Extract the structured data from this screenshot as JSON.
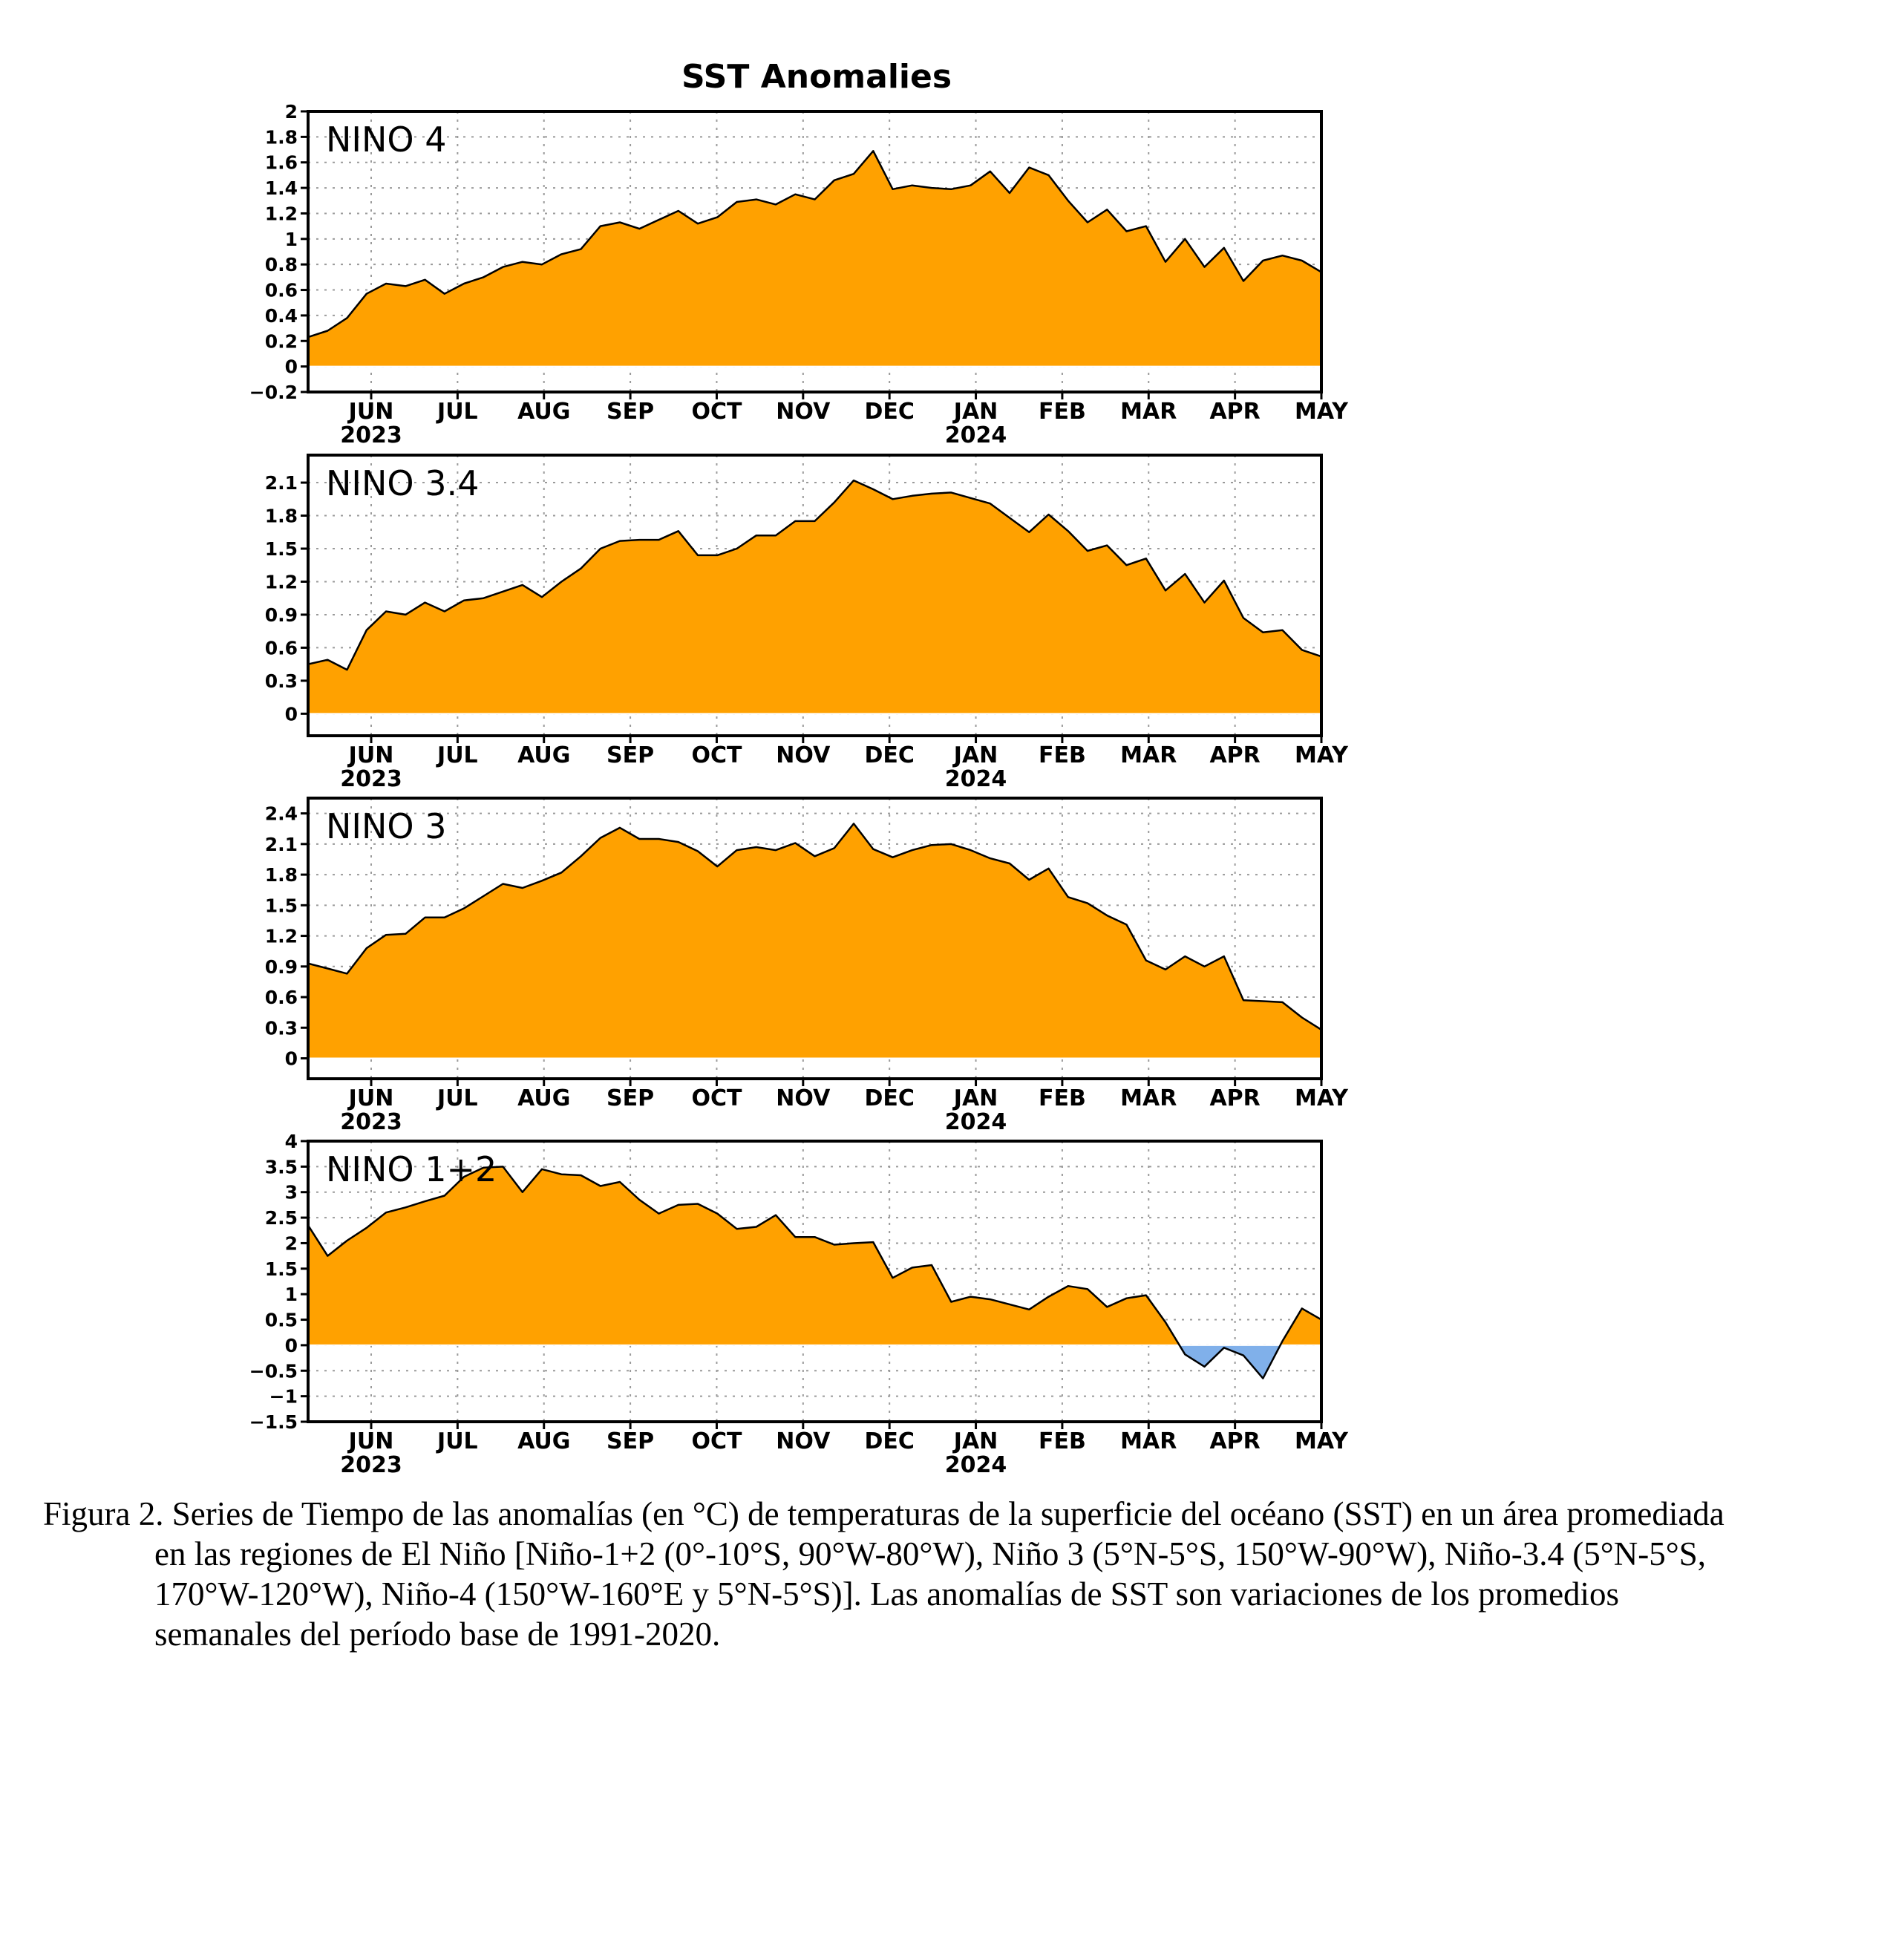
{
  "title": "SST Anomalies",
  "colors": {
    "positive": "#FFA100",
    "negative": "#80B0EA",
    "line": "#000000",
    "grid": "#9a9a9a"
  },
  "x_axis": {
    "months": [
      "JUN",
      "JUL",
      "AUG",
      "SEP",
      "OCT",
      "NOV",
      "DEC",
      "JAN",
      "FEB",
      "MAR",
      "APR",
      "MAY"
    ],
    "years": [
      {
        "label": "2023",
        "under": "JUN"
      },
      {
        "label": "2024",
        "under": "JAN"
      }
    ]
  },
  "chart_data": [
    {
      "type": "area",
      "name": "NINO 4",
      "ylim": [
        -0.2,
        2
      ],
      "yticks": [
        "2",
        "1.8",
        "1.6",
        "1.4",
        "1.2",
        "1",
        "0.8",
        "0.6",
        "0.4",
        "0.2",
        "0",
        "−0.2"
      ],
      "ytick_values": [
        2,
        1.8,
        1.6,
        1.4,
        1.2,
        1,
        0.8,
        0.6,
        0.4,
        0.2,
        0,
        -0.2
      ],
      "grid": true,
      "x_weeks": [
        0,
        1,
        2,
        3,
        4,
        5,
        6,
        7,
        8,
        9,
        10,
        11,
        12,
        13,
        14,
        15,
        16,
        17,
        18,
        19,
        20,
        21,
        22,
        23,
        24,
        25,
        26,
        27,
        28,
        29,
        30,
        31,
        32,
        33,
        34,
        35,
        36,
        37,
        38,
        39,
        40,
        41,
        42,
        43,
        44,
        45,
        46,
        47,
        48,
        49,
        50,
        51,
        52
      ],
      "values": [
        0.23,
        0.28,
        0.38,
        0.57,
        0.65,
        0.63,
        0.68,
        0.57,
        0.65,
        0.7,
        0.78,
        0.82,
        0.8,
        0.88,
        0.92,
        1.1,
        1.13,
        1.08,
        1.15,
        1.22,
        1.12,
        1.17,
        1.29,
        1.31,
        1.27,
        1.35,
        1.31,
        1.46,
        1.51,
        1.69,
        1.39,
        1.42,
        1.4,
        1.39,
        1.42,
        1.53,
        1.36,
        1.56,
        1.5,
        1.3,
        1.13,
        1.23,
        1.06,
        1.1,
        0.82,
        1.0,
        0.78,
        0.93,
        0.67,
        0.83,
        0.87,
        0.83,
        0.74
      ]
    },
    {
      "type": "area",
      "name": "NINO 3.4",
      "ylim": [
        -0.2,
        2.35
      ],
      "yticks": [
        "2.1",
        "1.8",
        "1.5",
        "1.2",
        "0.9",
        "0.6",
        "0.3",
        "0"
      ],
      "ytick_values": [
        2.1,
        1.8,
        1.5,
        1.2,
        0.9,
        0.6,
        0.3,
        0
      ],
      "grid": true,
      "x_weeks": [
        0,
        1,
        2,
        3,
        4,
        5,
        6,
        7,
        8,
        9,
        10,
        11,
        12,
        13,
        14,
        15,
        16,
        17,
        18,
        19,
        20,
        21,
        22,
        23,
        24,
        25,
        26,
        27,
        28,
        29,
        30,
        31,
        32,
        33,
        34,
        35,
        36,
        37,
        38,
        39,
        40,
        41,
        42,
        43,
        44,
        45,
        46,
        47,
        48,
        49,
        50,
        51,
        52
      ],
      "values": [
        0.45,
        0.49,
        0.4,
        0.76,
        0.93,
        0.9,
        1.01,
        0.93,
        1.03,
        1.05,
        1.11,
        1.17,
        1.06,
        1.2,
        1.32,
        1.5,
        1.57,
        1.58,
        1.58,
        1.66,
        1.44,
        1.44,
        1.5,
        1.62,
        1.62,
        1.75,
        1.75,
        1.92,
        2.12,
        2.04,
        1.95,
        1.98,
        2.0,
        2.01,
        1.96,
        1.91,
        1.78,
        1.65,
        1.81,
        1.66,
        1.48,
        1.53,
        1.35,
        1.41,
        1.12,
        1.27,
        1.01,
        1.21,
        0.87,
        0.74,
        0.76,
        0.58,
        0.52
      ]
    },
    {
      "type": "area",
      "name": "NINO 3",
      "ylim": [
        -0.2,
        2.55
      ],
      "yticks": [
        "2.4",
        "2.1",
        "1.8",
        "1.5",
        "1.2",
        "0.9",
        "0.6",
        "0.3",
        "0"
      ],
      "ytick_values": [
        2.4,
        2.1,
        1.8,
        1.5,
        1.2,
        0.9,
        0.6,
        0.3,
        0
      ],
      "grid": true,
      "x_weeks": [
        0,
        1,
        2,
        3,
        4,
        5,
        6,
        7,
        8,
        9,
        10,
        11,
        12,
        13,
        14,
        15,
        16,
        17,
        18,
        19,
        20,
        21,
        22,
        23,
        24,
        25,
        26,
        27,
        28,
        29,
        30,
        31,
        32,
        33,
        34,
        35,
        36,
        37,
        38,
        39,
        40,
        41,
        42,
        43,
        44,
        45,
        46,
        47,
        48,
        49,
        50,
        51,
        52
      ],
      "values": [
        0.93,
        0.88,
        0.83,
        1.08,
        1.21,
        1.22,
        1.38,
        1.38,
        1.47,
        1.59,
        1.71,
        1.67,
        1.74,
        1.82,
        1.98,
        2.16,
        2.26,
        2.15,
        2.15,
        2.12,
        2.03,
        1.88,
        2.04,
        2.07,
        2.04,
        2.11,
        1.98,
        2.06,
        2.3,
        2.05,
        1.97,
        2.04,
        2.09,
        2.1,
        2.04,
        1.96,
        1.91,
        1.75,
        1.86,
        1.58,
        1.52,
        1.4,
        1.31,
        0.96,
        0.87,
        1.0,
        0.9,
        1.0,
        0.57,
        0.56,
        0.55,
        0.4,
        0.28
      ]
    },
    {
      "type": "area",
      "name": "NINO 1+2",
      "ylim": [
        -1.5,
        4
      ],
      "yticks": [
        "4",
        "3.5",
        "3",
        "2.5",
        "2",
        "1.5",
        "1",
        "0.5",
        "0",
        "−0.5",
        "−1",
        "−1.5"
      ],
      "ytick_values": [
        4,
        3.5,
        3,
        2.5,
        2,
        1.5,
        1,
        0.5,
        0,
        -0.5,
        -1,
        -1.5
      ],
      "grid": true,
      "x_weeks": [
        0,
        1,
        2,
        3,
        4,
        5,
        6,
        7,
        8,
        9,
        10,
        11,
        12,
        13,
        14,
        15,
        16,
        17,
        18,
        19,
        20,
        21,
        22,
        23,
        24,
        25,
        26,
        27,
        28,
        29,
        30,
        31,
        32,
        33,
        34,
        35,
        36,
        37,
        38,
        39,
        40,
        41,
        42,
        43,
        44,
        45,
        46,
        47,
        48,
        49,
        50,
        51,
        52
      ],
      "values": [
        2.35,
        1.75,
        2.05,
        2.3,
        2.6,
        2.7,
        2.82,
        2.93,
        3.3,
        3.48,
        3.5,
        3.0,
        3.45,
        3.35,
        3.33,
        3.12,
        3.2,
        2.85,
        2.58,
        2.75,
        2.77,
        2.58,
        2.28,
        2.32,
        2.55,
        2.12,
        2.12,
        1.97,
        2.0,
        2.02,
        1.32,
        1.52,
        1.57,
        0.85,
        0.95,
        0.9,
        0.8,
        0.7,
        0.95,
        1.16,
        1.1,
        0.75,
        0.92,
        0.98,
        0.45,
        -0.18,
        -0.42,
        -0.05,
        -0.2,
        -0.65,
        0.08,
        0.72,
        0.5
      ]
    }
  ],
  "caption": {
    "line1": "Figura 2. Series de Tiempo de las anomalías (en °C) de temperaturas de la superficie del océano (SST) en un área promediada en las regiones de El Niño [Niño-1+2 (0°-10°S, 90°W-80°W), Niño 3 (5°N-5°S, 150°W-90°W), Niño-3.4 (5°N-5°S, 170°W-120°W), Niño-4 (150°W-160°E y 5°N-5°S)]. Las anomalías de SST son variaciones de los promedios semanales del período base de 1991-2020."
  }
}
